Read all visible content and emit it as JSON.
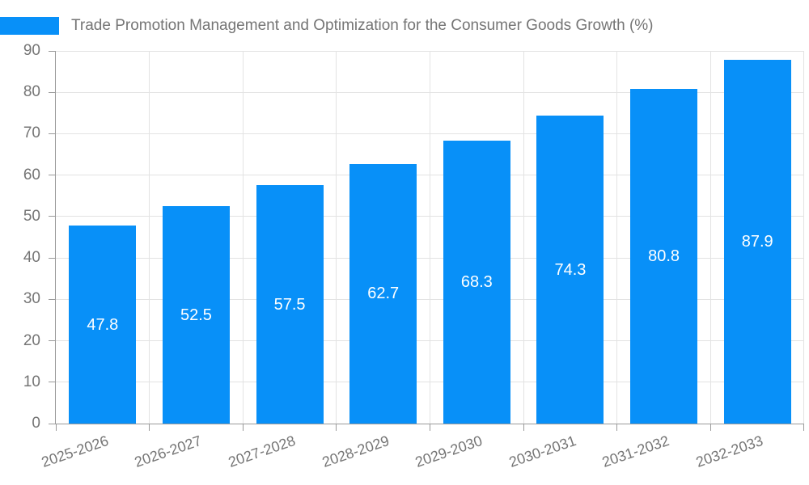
{
  "colors": {
    "bar": "#0890f8",
    "grid": "#e3e3e3",
    "axis": "#9a9a9a",
    "tick_label": "#757575",
    "title_text": "#757575",
    "bar_label": "#ffffff",
    "background": "#ffffff"
  },
  "chart_data": {
    "type": "bar",
    "title": "Trade Promotion Management and Optimization for the Consumer Goods Growth (%)",
    "categories": [
      "2025-2026",
      "2026-2027",
      "2027-2028",
      "2028-2029",
      "2029-2030",
      "2030-2031",
      "2031-2032",
      "2032-2033"
    ],
    "values": [
      47.8,
      52.5,
      57.5,
      62.7,
      68.3,
      74.3,
      80.8,
      87.9
    ],
    "value_labels": [
      "47.8",
      "52.5",
      "57.5",
      "62.7",
      "68.3",
      "74.3",
      "80.8",
      "87.9"
    ],
    "xlabel": "",
    "ylabel": "",
    "ylim": [
      0,
      90
    ],
    "yticks": [
      0,
      10,
      20,
      30,
      40,
      50,
      60,
      70,
      80,
      90
    ],
    "grid": true,
    "legend_position": "top-left",
    "bar_label_position": "center",
    "x_tick_rotation_deg": -19
  }
}
